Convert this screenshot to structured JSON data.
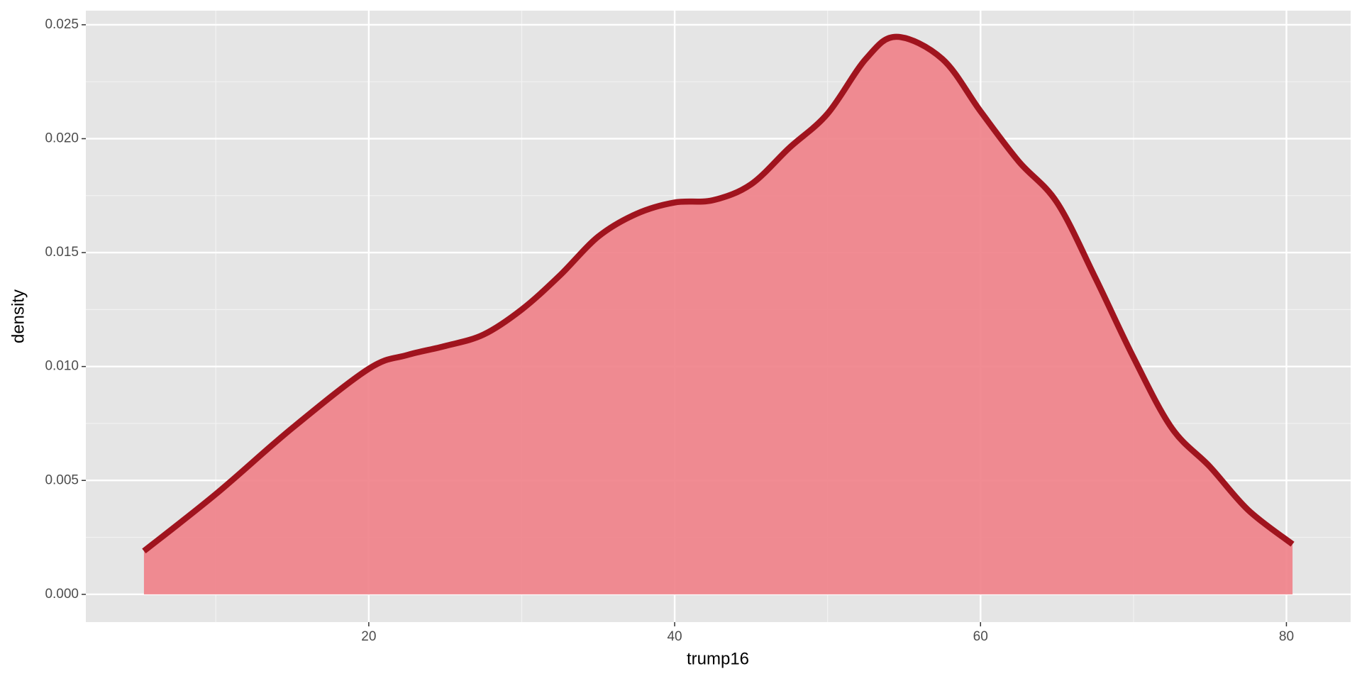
{
  "chart_data": {
    "type": "density",
    "x_label": "trump16",
    "y_label": "density",
    "x": [
      5.3,
      10,
      15,
      20,
      22.5,
      25,
      27.5,
      30,
      32.5,
      35,
      37.5,
      40,
      42.5,
      45,
      47.5,
      50,
      52.5,
      54.5,
      57.5,
      60,
      62.5,
      65,
      67.5,
      70,
      72.5,
      75,
      77.5,
      80.4
    ],
    "values": [
      0.0019,
      0.0044,
      0.0073,
      0.0099,
      0.0105,
      0.0109,
      0.0114,
      0.0125,
      0.014,
      0.0157,
      0.0167,
      0.0172,
      0.0173,
      0.018,
      0.0196,
      0.0211,
      0.0235,
      0.02447,
      0.0235,
      0.0212,
      0.019,
      0.0172,
      0.0139,
      0.0104,
      0.0073,
      0.0056,
      0.0037,
      0.0022
    ],
    "line_color": "#a0141e",
    "fill_color": "#f07f87",
    "xlim": [
      1.5,
      84.2
    ],
    "ylim": [
      -0.00122,
      0.02562
    ],
    "xticks": [
      20,
      40,
      60,
      80
    ],
    "yticks": [
      {
        "value": 0,
        "label": "0.000"
      },
      {
        "value": 0.005,
        "label": "0.005"
      },
      {
        "value": 0.01,
        "label": "0.010"
      },
      {
        "value": 0.015,
        "label": "0.015"
      },
      {
        "value": 0.02,
        "label": "0.020"
      },
      {
        "value": 0.025,
        "label": "0.025"
      }
    ],
    "x_minor_grid": [
      10,
      30,
      50,
      70
    ],
    "y_minor_grid": [
      0.0025,
      0.0075,
      0.0125,
      0.0175,
      0.0225
    ],
    "grid": true
  }
}
